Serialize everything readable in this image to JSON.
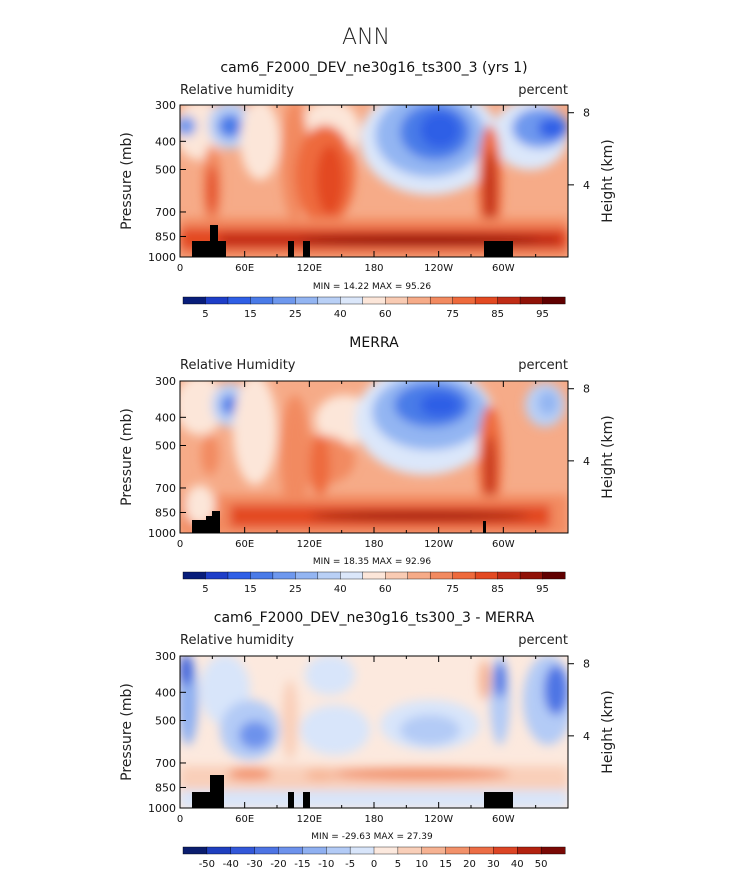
{
  "figure": {
    "title": "ANN"
  },
  "chart_data": [
    {
      "type": "heatmap",
      "title": "cam6_F2000_DEV_ne30g16_ts300_3 (yrs 1)",
      "variable_label": "Relative humidity",
      "units_label": "percent",
      "ylabel": "Pressure (mb)",
      "y2label": "Height (km)",
      "x_ticks": [
        "0",
        "60E",
        "120E",
        "180",
        "120W",
        "60W"
      ],
      "x_tick_lon": [
        0,
        60,
        120,
        180,
        240,
        300
      ],
      "xlim": [
        0,
        360
      ],
      "y_ticks": [
        "300",
        "400",
        "500",
        "700",
        "850",
        "1000"
      ],
      "y_tick_p": [
        300,
        400,
        500,
        700,
        850,
        1000
      ],
      "ylim": [
        1000,
        300
      ],
      "y2_ticks": [
        "8",
        "4"
      ],
      "y2_tick_km": [
        8,
        4
      ],
      "stats_text": "MIN =   14.22   MAX =   95.26",
      "min": 14.22,
      "max": 95.26,
      "colorbar": {
        "labels": [
          "5",
          "15",
          "25",
          "40",
          "60",
          "75",
          "85",
          "95"
        ],
        "levels": [
          5,
          10,
          15,
          20,
          25,
          30,
          40,
          50,
          60,
          65,
          70,
          75,
          80,
          85,
          90,
          95
        ]
      }
    },
    {
      "type": "heatmap",
      "title": "MERRA",
      "variable_label": "Relative Humidity",
      "units_label": "percent",
      "ylabel": "Pressure (mb)",
      "y2label": "Height (km)",
      "x_ticks": [
        "0",
        "60E",
        "120E",
        "180",
        "120W",
        "60W"
      ],
      "x_tick_lon": [
        0,
        60,
        120,
        180,
        240,
        300
      ],
      "xlim": [
        0,
        360
      ],
      "y_ticks": [
        "300",
        "400",
        "500",
        "700",
        "850",
        "1000"
      ],
      "y_tick_p": [
        300,
        400,
        500,
        700,
        850,
        1000
      ],
      "ylim": [
        1000,
        300
      ],
      "y2_ticks": [
        "8",
        "4"
      ],
      "y2_tick_km": [
        8,
        4
      ],
      "stats_text": "MIN =   18.35   MAX =   92.96",
      "min": 18.35,
      "max": 92.96,
      "colorbar": {
        "labels": [
          "5",
          "15",
          "25",
          "40",
          "60",
          "75",
          "85",
          "95"
        ],
        "levels": [
          5,
          10,
          15,
          20,
          25,
          30,
          40,
          50,
          60,
          65,
          70,
          75,
          80,
          85,
          90,
          95
        ]
      }
    },
    {
      "type": "heatmap",
      "title": "cam6_F2000_DEV_ne30g16_ts300_3 - MERRA",
      "variable_label": "Relative humidity",
      "units_label": "percent",
      "ylabel": "Pressure (mb)",
      "y2label": "Height (km)",
      "x_ticks": [
        "0",
        "60E",
        "120E",
        "180",
        "120W",
        "60W"
      ],
      "x_tick_lon": [
        0,
        60,
        120,
        180,
        240,
        300
      ],
      "xlim": [
        0,
        360
      ],
      "y_ticks": [
        "300",
        "400",
        "500",
        "700",
        "850",
        "1000"
      ],
      "y_tick_p": [
        300,
        400,
        500,
        700,
        850,
        1000
      ],
      "ylim": [
        1000,
        300
      ],
      "y2_ticks": [
        "8",
        "4"
      ],
      "y2_tick_km": [
        8,
        4
      ],
      "stats_text": "MIN =  -29.63   MAX =   27.39",
      "min": -29.63,
      "max": 27.39,
      "colorbar": {
        "labels": [
          "-50",
          "-40",
          "-30",
          "-20",
          "-15",
          "-10",
          "-5",
          "0",
          "5",
          "10",
          "15",
          "20",
          "30",
          "40",
          "50"
        ],
        "levels": [
          -50,
          -40,
          -30,
          -20,
          -15,
          -10,
          -5,
          0,
          5,
          10,
          15,
          20,
          30,
          40,
          50
        ]
      }
    }
  ],
  "colors": {
    "rh_scale": [
      "#081d7a",
      "#1e3ec8",
      "#2f5fe6",
      "#4a7be8",
      "#6e98ee",
      "#93b5f2",
      "#b9d0f6",
      "#dbe7fa",
      "#fce6d9",
      "#f9cbb3",
      "#f6ab88",
      "#f28a60",
      "#ee6a3c",
      "#e34a22",
      "#c02c16",
      "#901208",
      "#600000"
    ],
    "diff_scale": [
      "#0b1d6e",
      "#1f3fbf",
      "#3358d9",
      "#4d74e4",
      "#6d92ec",
      "#8fb0f1",
      "#b3cbf6",
      "#d8e5fa",
      "#fce9de",
      "#f9cfb9",
      "#f6b292",
      "#f2916a",
      "#ec6d45",
      "#dc4525",
      "#b3220f",
      "#7a0905"
    ],
    "topography": "#000000"
  }
}
